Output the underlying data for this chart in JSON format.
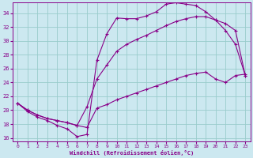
{
  "xlabel": "Windchill (Refroidissement éolien,°C)",
  "bg_color": "#cce8f0",
  "line_color": "#880088",
  "grid_color": "#99cccc",
  "xlim": [
    -0.5,
    23.5
  ],
  "ylim": [
    15.5,
    35.5
  ],
  "yticks": [
    16,
    18,
    20,
    22,
    24,
    26,
    28,
    30,
    32,
    34
  ],
  "xticks": [
    0,
    1,
    2,
    3,
    4,
    5,
    6,
    7,
    8,
    9,
    10,
    11,
    12,
    13,
    14,
    15,
    16,
    17,
    18,
    19,
    20,
    21,
    22,
    23
  ],
  "curve1_x": [
    0,
    1,
    2,
    3,
    4,
    5,
    6,
    7,
    8,
    9,
    10,
    11,
    12,
    13,
    14,
    15,
    16,
    17,
    18,
    19,
    20,
    21,
    22,
    23
  ],
  "curve1_y": [
    21.0,
    19.8,
    19.0,
    18.5,
    17.8,
    17.3,
    16.2,
    16.5,
    27.2,
    31.0,
    33.3,
    33.2,
    33.2,
    33.6,
    34.2,
    35.3,
    35.5,
    35.3,
    35.1,
    34.2,
    33.0,
    31.5,
    29.5,
    25.0
  ],
  "curve2_x": [
    0,
    1,
    2,
    3,
    4,
    5,
    6,
    7,
    8,
    9,
    10,
    11,
    12,
    13,
    14,
    15,
    16,
    17,
    18,
    19,
    20,
    21,
    22,
    23
  ],
  "curve2_y": [
    21.0,
    20.0,
    19.3,
    18.8,
    18.5,
    18.2,
    17.8,
    20.5,
    24.5,
    26.5,
    28.5,
    29.5,
    30.2,
    30.8,
    31.5,
    32.2,
    32.8,
    33.2,
    33.5,
    33.5,
    33.0,
    32.5,
    31.5,
    25.0
  ],
  "curve3_x": [
    0,
    1,
    2,
    3,
    4,
    5,
    6,
    7,
    8,
    9,
    10,
    11,
    12,
    13,
    14,
    15,
    16,
    17,
    18,
    19,
    20,
    21,
    22,
    23
  ],
  "curve3_y": [
    21.0,
    20.0,
    19.3,
    18.8,
    18.5,
    18.2,
    17.8,
    17.5,
    20.3,
    20.8,
    21.5,
    22.0,
    22.5,
    23.0,
    23.5,
    24.0,
    24.5,
    25.0,
    25.3,
    25.5,
    24.5,
    24.0,
    25.0,
    25.2
  ],
  "marker": "+"
}
